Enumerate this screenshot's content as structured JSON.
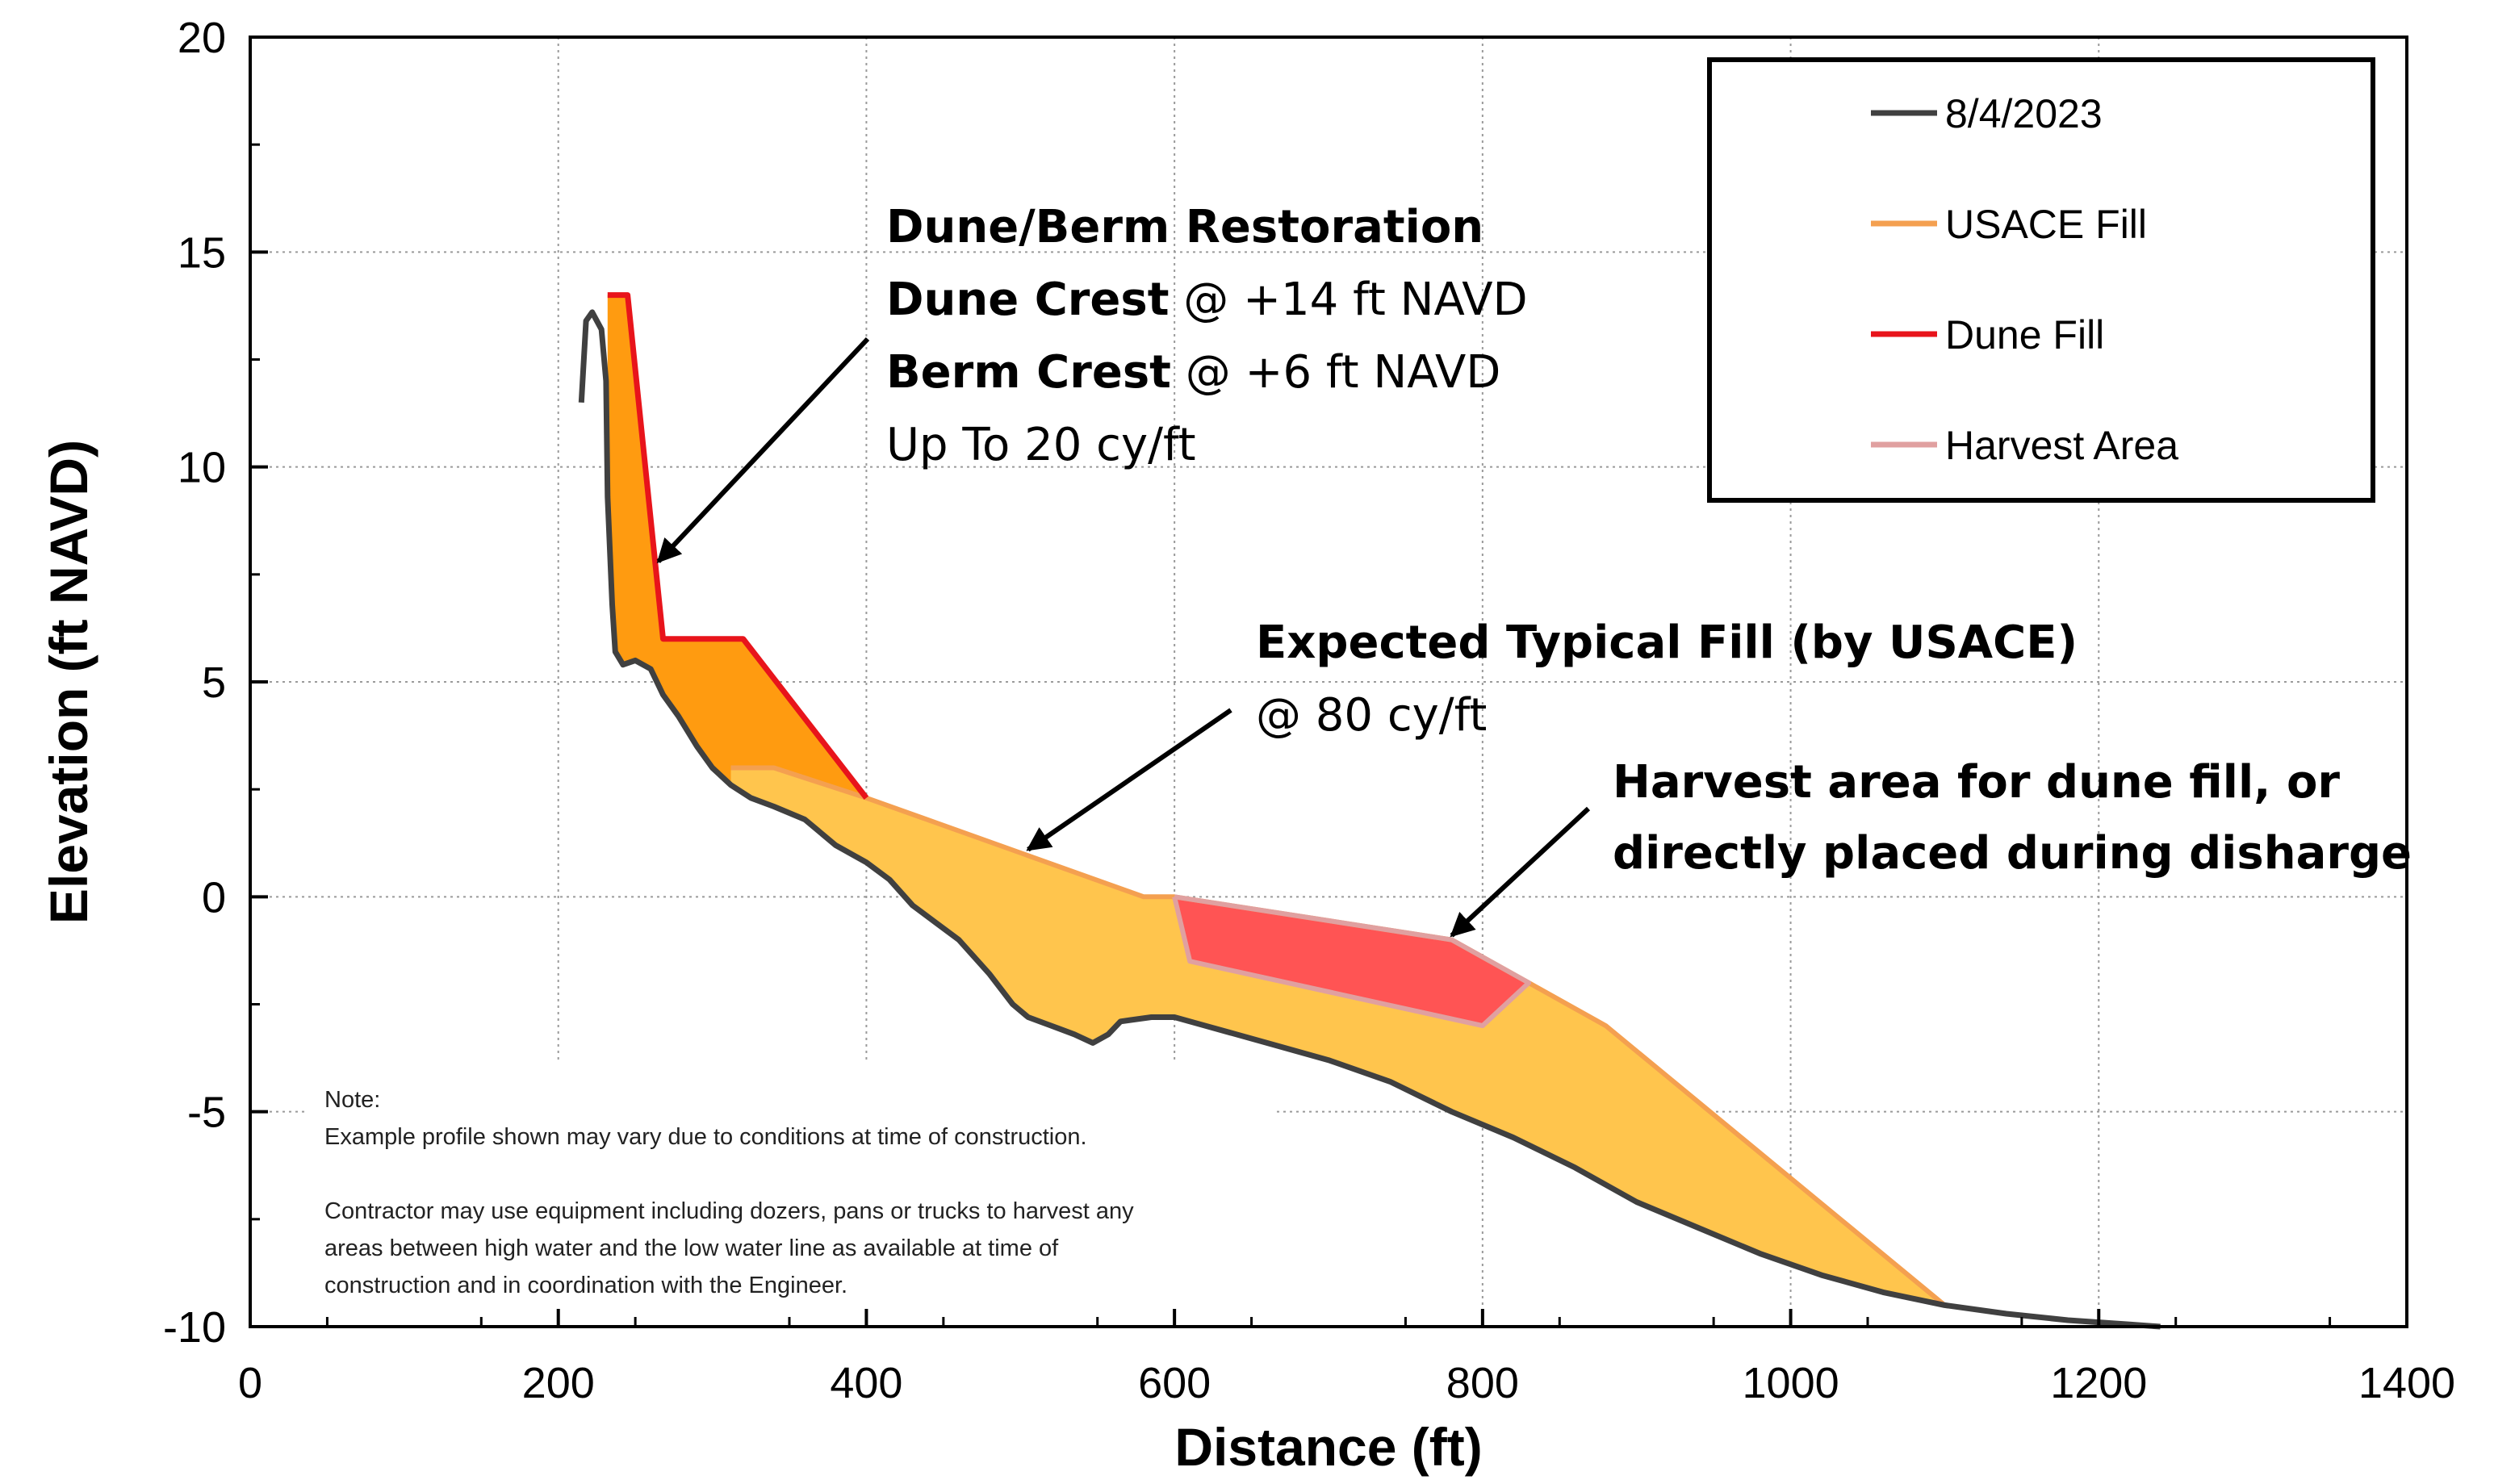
{
  "chart_data": {
    "type": "area",
    "title": "",
    "xlabel": "Distance (ft)",
    "ylabel": "Elevation (ft NAVD)",
    "xlim": [
      0,
      1400
    ],
    "ylim": [
      -10,
      20
    ],
    "x_ticks": [
      0,
      200,
      400,
      600,
      800,
      1000,
      1200,
      1400
    ],
    "y_ticks": [
      -10,
      -5,
      0,
      5,
      10,
      15,
      20
    ],
    "x_tick_labels": [
      "0",
      "200",
      "400",
      "600",
      "800",
      "1000",
      "1200",
      "1400"
    ],
    "y_tick_labels": [
      "-10",
      "-5",
      "0",
      "5",
      "10",
      "15",
      "20"
    ],
    "grid": true,
    "legend_position": "top-right",
    "series": [
      {
        "name": "8/4/2023",
        "color": "#404040",
        "points": [
          [
            215,
            11.5
          ],
          [
            218,
            13.4
          ],
          [
            222,
            13.6
          ],
          [
            228,
            13.2
          ],
          [
            231,
            12
          ],
          [
            232,
            9.3
          ],
          [
            235,
            6.8
          ],
          [
            237,
            5.7
          ],
          [
            242,
            5.4
          ],
          [
            250,
            5.5
          ],
          [
            260,
            5.3
          ],
          [
            268,
            4.7
          ],
          [
            278,
            4.2
          ],
          [
            290,
            3.5
          ],
          [
            300,
            3.0
          ],
          [
            312,
            2.6
          ],
          [
            325,
            2.3
          ],
          [
            340,
            2.1
          ],
          [
            360,
            1.8
          ],
          [
            380,
            1.2
          ],
          [
            400,
            0.8
          ],
          [
            415,
            0.4
          ],
          [
            430,
            -0.2
          ],
          [
            445,
            -0.6
          ],
          [
            460,
            -1.0
          ],
          [
            480,
            -1.8
          ],
          [
            495,
            -2.5
          ],
          [
            505,
            -2.8
          ],
          [
            520,
            -3.0
          ],
          [
            535,
            -3.2
          ],
          [
            547,
            -3.4
          ],
          [
            557,
            -3.2
          ],
          [
            565,
            -2.9
          ],
          [
            585,
            -2.8
          ],
          [
            600,
            -2.8
          ],
          [
            620,
            -3.0
          ],
          [
            660,
            -3.4
          ],
          [
            700,
            -3.8
          ],
          [
            740,
            -4.3
          ],
          [
            780,
            -5.0
          ],
          [
            820,
            -5.6
          ],
          [
            860,
            -6.3
          ],
          [
            900,
            -7.1
          ],
          [
            940,
            -7.7
          ],
          [
            980,
            -8.3
          ],
          [
            1020,
            -8.8
          ],
          [
            1060,
            -9.2
          ],
          [
            1100,
            -9.5
          ],
          [
            1140,
            -9.7
          ],
          [
            1180,
            -9.85
          ],
          [
            1220,
            -9.95
          ],
          [
            1240,
            -10.0
          ]
        ]
      },
      {
        "name": "USACE Fill",
        "color": "#F4A050",
        "fill": "#FFC54D",
        "points": [
          [
            312,
            3.0
          ],
          [
            340,
            3.0
          ],
          [
            400,
            2.3
          ],
          [
            580,
            0.0
          ],
          [
            600,
            0.0
          ],
          [
            780,
            -1.0
          ],
          [
            830,
            -2.0
          ],
          [
            880,
            -3.0
          ],
          [
            1100,
            -9.5
          ]
        ]
      },
      {
        "name": "Dune Fill",
        "color": "#E8141B",
        "fill": "#FF9B10",
        "points": [
          [
            232,
            14.0
          ],
          [
            245,
            14.0
          ],
          [
            268,
            6.0
          ],
          [
            320,
            6.0
          ],
          [
            400,
            2.3
          ]
        ]
      },
      {
        "name": "Harvest Area",
        "color": "#E0A0A0",
        "fill": "#FF5454",
        "points": [
          [
            600,
            0.0
          ],
          [
            610,
            -1.5
          ],
          [
            800,
            -3.0
          ],
          [
            830,
            -2.0
          ],
          [
            780,
            -1.0
          ],
          [
            600,
            0.0
          ]
        ]
      }
    ],
    "annotations": [
      {
        "lines": [
          {
            "text": "Dune/Berm Restoration",
            "bold": true
          },
          {
            "bold": "Dune Crest",
            "text": " @ +14 ft NAVD"
          },
          {
            "bold": "Berm Crest",
            "text": " @ +6 ft NAVD"
          },
          {
            "text": "Up To 20 cy/ft",
            "bold": false
          }
        ],
        "arrow_to": [
          265,
          7.8
        ]
      },
      {
        "lines": [
          {
            "text": "Expected Typical Fill (by USACE)",
            "bold": true
          },
          {
            "text": "@ 80 cy/ft",
            "bold": false
          }
        ],
        "arrow_to": [
          505,
          1.1
        ]
      },
      {
        "lines": [
          {
            "text": "Harvest area for dune fill, or",
            "bold": true
          },
          {
            "text": "directly placed during disharge",
            "bold": true
          }
        ],
        "arrow_to": [
          780,
          -0.9
        ]
      }
    ],
    "note": {
      "title": "Note:",
      "lines": [
        "Example profile shown may vary due to conditions at time of construction.",
        "",
        "Contractor may use equipment including dozers, pans or trucks to harvest any",
        "areas between high water and the low water line as available at time of",
        "construction and in coordination with the Engineer."
      ]
    }
  }
}
